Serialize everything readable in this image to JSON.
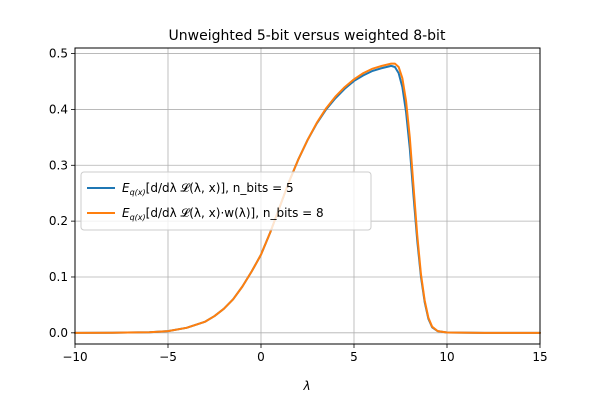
{
  "chart_data": {
    "type": "line",
    "title": "Unweighted 5-bit versus weighted 8-bit",
    "xlabel": "λ",
    "ylabel": "",
    "xlim": [
      -10,
      15
    ],
    "ylim": [
      -0.02,
      0.51
    ],
    "xticks": [
      -10,
      -5,
      0,
      5,
      10,
      15
    ],
    "xtick_labels": [
      "−10",
      "−5",
      "0",
      "5",
      "10",
      "15"
    ],
    "yticks": [
      0.0,
      0.1,
      0.2,
      0.3,
      0.4,
      0.5
    ],
    "ytick_labels": [
      "0.0",
      "0.1",
      "0.2",
      "0.3",
      "0.4",
      "0.5"
    ],
    "grid": true,
    "legend_position": "center-left",
    "series": [
      {
        "name": "E_q(x)[d/dλ 𝓛(λ, x)], n_bits = 5",
        "legend_main": "E",
        "legend_sub": "q(x)",
        "legend_rest": "[d/dλ 𝓛(λ, x)], n_bits = 5",
        "color": "#1f77b4",
        "x": [
          -10,
          -8,
          -6,
          -5,
          -4,
          -3,
          -2.5,
          -2,
          -1.5,
          -1,
          -0.5,
          0,
          0.5,
          1,
          1.5,
          2,
          2.5,
          3,
          3.5,
          4,
          4.5,
          5,
          5.5,
          6,
          6.5,
          7,
          7.2,
          7.4,
          7.6,
          7.8,
          8,
          8.2,
          8.4,
          8.6,
          8.8,
          9,
          9.2,
          9.5,
          10,
          12,
          15
        ],
        "y": [
          0,
          0.0002,
          0.001,
          0.003,
          0.009,
          0.02,
          0.03,
          0.043,
          0.06,
          0.083,
          0.11,
          0.14,
          0.18,
          0.225,
          0.27,
          0.31,
          0.345,
          0.375,
          0.4,
          0.42,
          0.437,
          0.451,
          0.461,
          0.469,
          0.474,
          0.478,
          0.476,
          0.465,
          0.44,
          0.395,
          0.33,
          0.245,
          0.165,
          0.1,
          0.055,
          0.025,
          0.01,
          0.003,
          0.0005,
          0,
          0
        ]
      },
      {
        "name": "E_q(x)[d/dλ 𝓛(λ, x)·w(λ)], n_bits = 8",
        "legend_main": "E",
        "legend_sub": "q(x)",
        "legend_rest": "[d/dλ 𝓛(λ, x)·w(λ)], n_bits = 8",
        "color": "#ff7f0e",
        "x": [
          -10,
          -8,
          -6,
          -5,
          -4,
          -3,
          -2.5,
          -2,
          -1.5,
          -1,
          -0.5,
          0,
          0.5,
          1,
          1.5,
          2,
          2.5,
          3,
          3.5,
          4,
          4.5,
          5,
          5.5,
          6,
          6.5,
          7,
          7.2,
          7.4,
          7.6,
          7.8,
          8,
          8.2,
          8.4,
          8.6,
          8.8,
          9,
          9.2,
          9.5,
          10,
          12,
          15
        ],
        "y": [
          0,
          0.0002,
          0.001,
          0.003,
          0.009,
          0.02,
          0.03,
          0.043,
          0.06,
          0.083,
          0.11,
          0.14,
          0.18,
          0.225,
          0.27,
          0.31,
          0.345,
          0.376,
          0.402,
          0.423,
          0.44,
          0.454,
          0.465,
          0.473,
          0.478,
          0.482,
          0.482,
          0.476,
          0.456,
          0.415,
          0.35,
          0.262,
          0.175,
          0.105,
          0.058,
          0.027,
          0.011,
          0.003,
          0.0005,
          0,
          0
        ]
      }
    ]
  }
}
